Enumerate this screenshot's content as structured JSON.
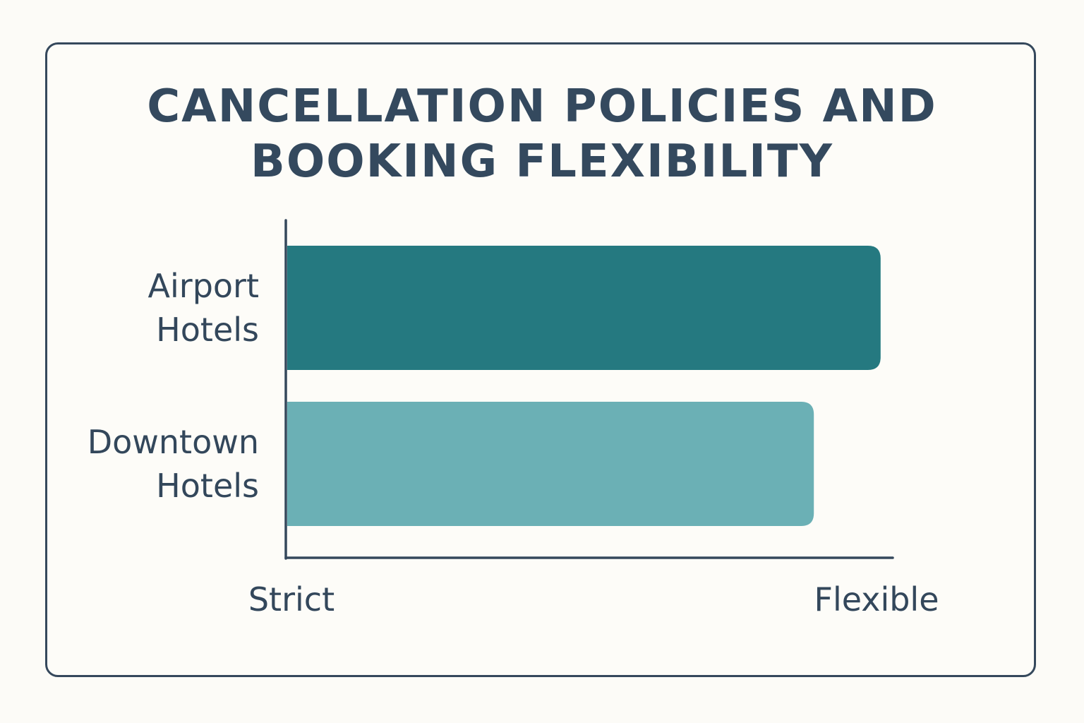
{
  "chart_data": {
    "type": "bar",
    "orientation": "horizontal",
    "title_lines": [
      "CANCELLATION POLICIES AND",
      "BOOKING FLEXIBILITY"
    ],
    "categories": [
      {
        "lines": [
          "Airport",
          "Hotels"
        ]
      },
      {
        "lines": [
          "Downtown",
          "Hotels"
        ]
      }
    ],
    "values": [
      0.98,
      0.87
    ],
    "xlim": [
      0,
      1
    ],
    "x_tick_labels": [
      "Strict",
      "Flexible"
    ],
    "colors": [
      "#257980",
      "#6bb0b5"
    ],
    "axis_color": "#35485c",
    "grid": false,
    "legend": "none"
  }
}
